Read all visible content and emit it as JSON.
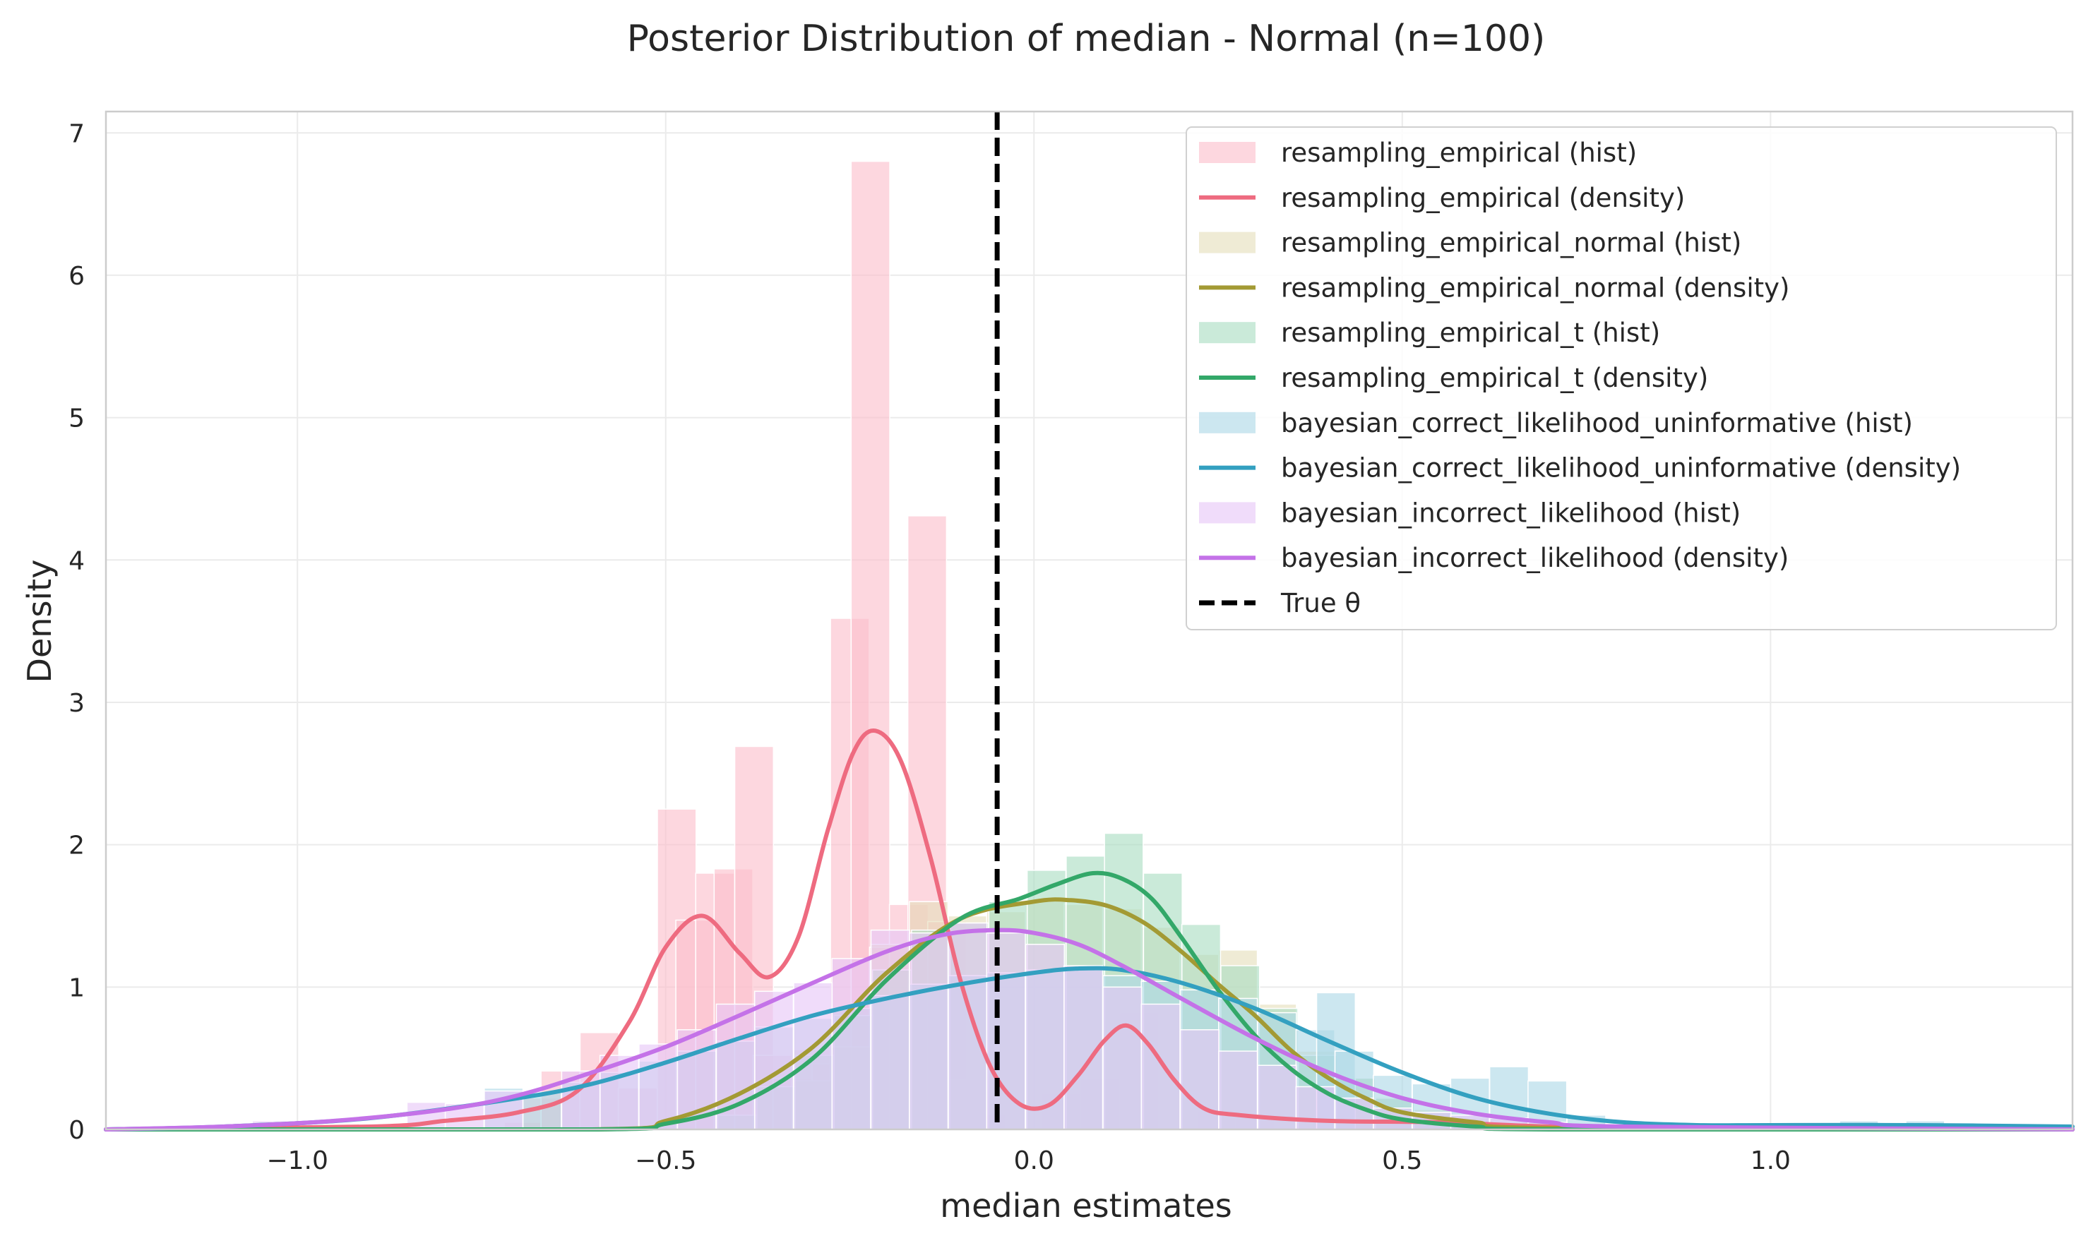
{
  "chart_data": {
    "type": "histogram+density",
    "title": "Posterior Distribution of median - Normal (n=100)",
    "xlabel": "median estimates",
    "ylabel": "Density",
    "xlim": [
      -1.26,
      1.41
    ],
    "ylim": [
      0,
      7.15
    ],
    "xticks": [
      -1.0,
      -0.5,
      0.0,
      0.5,
      1.0
    ],
    "xtick_labels": [
      "−1.0",
      "−0.5",
      "0.0",
      "0.5",
      "1.0"
    ],
    "yticks": [
      0,
      1,
      2,
      3,
      4,
      5,
      6,
      7
    ],
    "ytick_labels": [
      "0",
      "1",
      "2",
      "3",
      "4",
      "5",
      "6",
      "7"
    ],
    "grid": true,
    "legend_position": "upper-right",
    "true_theta": {
      "x": -0.05,
      "label": "True θ",
      "color": "#000000"
    },
    "series": [
      {
        "name": "resampling_empirical",
        "hist_label": "resampling_empirical (hist)",
        "density_label": "resampling_empirical (density)",
        "color": "#ee6b80",
        "hist_color": "#fbbecb",
        "bins": [
          [
            -0.693,
            0.05
          ],
          [
            -0.668,
            0.22
          ],
          [
            -0.643,
            0.41
          ],
          [
            -0.59,
            0.68
          ],
          [
            -0.538,
            0.29
          ],
          [
            -0.485,
            2.25
          ],
          [
            -0.46,
            1.47
          ],
          [
            -0.433,
            1.8
          ],
          [
            -0.408,
            1.83
          ],
          [
            -0.38,
            2.69
          ],
          [
            -0.355,
            0.52
          ],
          [
            -0.328,
            0.36
          ],
          [
            -0.303,
            0.56
          ],
          [
            -0.275,
            0.46
          ],
          [
            -0.25,
            3.59
          ],
          [
            -0.222,
            6.8
          ],
          [
            -0.197,
            1.28
          ],
          [
            -0.17,
            1.58
          ],
          [
            -0.145,
            4.31
          ],
          [
            -0.118,
            1.46
          ],
          [
            -0.092,
            0.35
          ],
          [
            -0.065,
            0.1
          ],
          [
            0.037,
            0.25
          ],
          [
            0.09,
            0.36
          ],
          [
            0.143,
            0.82
          ],
          [
            0.248,
            0.12
          ],
          [
            0.3,
            0.1
          ],
          [
            0.405,
            0.05
          ],
          [
            0.458,
            0.06
          ],
          [
            0.51,
            0.06
          ],
          [
            0.563,
            0.04
          ],
          [
            0.615,
            0.03
          ],
          [
            0.668,
            0.02
          ]
        ],
        "density": [
          [
            -1.26,
            0.0
          ],
          [
            -0.9,
            0.02
          ],
          [
            -0.8,
            0.06
          ],
          [
            -0.7,
            0.12
          ],
          [
            -0.62,
            0.27
          ],
          [
            -0.55,
            0.75
          ],
          [
            -0.5,
            1.28
          ],
          [
            -0.45,
            1.5
          ],
          [
            -0.4,
            1.24
          ],
          [
            -0.36,
            1.07
          ],
          [
            -0.32,
            1.35
          ],
          [
            -0.28,
            2.1
          ],
          [
            -0.245,
            2.65
          ],
          [
            -0.215,
            2.8
          ],
          [
            -0.18,
            2.58
          ],
          [
            -0.14,
            1.9
          ],
          [
            -0.1,
            1.05
          ],
          [
            -0.06,
            0.45
          ],
          [
            -0.02,
            0.18
          ],
          [
            0.02,
            0.17
          ],
          [
            0.06,
            0.38
          ],
          [
            0.095,
            0.62
          ],
          [
            0.125,
            0.73
          ],
          [
            0.155,
            0.6
          ],
          [
            0.19,
            0.35
          ],
          [
            0.23,
            0.15
          ],
          [
            0.28,
            0.1
          ],
          [
            0.4,
            0.06
          ],
          [
            0.55,
            0.05
          ],
          [
            0.7,
            0.02
          ],
          [
            0.85,
            0.01
          ],
          [
            1.41,
            0.0
          ]
        ]
      },
      {
        "name": "resampling_empirical_normal",
        "hist_label": "resampling_empirical_normal (hist)",
        "density_label": "resampling_empirical_normal (density)",
        "color": "#a39a34",
        "hist_color": "#e5dfbc",
        "bins": [
          [
            -0.3,
            0.34
          ],
          [
            -0.248,
            0.58
          ],
          [
            -0.195,
            1.3
          ],
          [
            -0.143,
            1.6
          ],
          [
            -0.09,
            1.5
          ],
          [
            -0.038,
            1.53
          ],
          [
            0.015,
            1.6
          ],
          [
            0.067,
            1.58
          ],
          [
            0.12,
            1.55
          ],
          [
            0.172,
            1.42
          ],
          [
            0.225,
            1.23
          ],
          [
            0.277,
            1.26
          ],
          [
            0.33,
            0.88
          ],
          [
            0.382,
            0.55
          ],
          [
            0.435,
            0.36
          ],
          [
            0.487,
            0.23
          ],
          [
            0.54,
            0.14
          ],
          [
            0.592,
            0.08
          ],
          [
            0.645,
            0.04
          ]
        ],
        "density": [
          [
            -1.26,
            0.0
          ],
          [
            -0.6,
            0.0
          ],
          [
            -0.5,
            0.06
          ],
          [
            -0.4,
            0.25
          ],
          [
            -0.3,
            0.58
          ],
          [
            -0.2,
            1.1
          ],
          [
            -0.1,
            1.48
          ],
          [
            0.0,
            1.6
          ],
          [
            0.05,
            1.61
          ],
          [
            0.1,
            1.57
          ],
          [
            0.15,
            1.45
          ],
          [
            0.2,
            1.25
          ],
          [
            0.25,
            1.02
          ],
          [
            0.3,
            0.8
          ],
          [
            0.35,
            0.55
          ],
          [
            0.4,
            0.36
          ],
          [
            0.45,
            0.22
          ],
          [
            0.5,
            0.12
          ],
          [
            0.6,
            0.05
          ],
          [
            0.7,
            0.01
          ],
          [
            1.41,
            0.0
          ]
        ]
      },
      {
        "name": "resampling_empirical_t",
        "hist_label": "resampling_empirical_t (hist)",
        "density_label": "resampling_empirical_t (density)",
        "color": "#33a869",
        "hist_color": "#a9ddc1",
        "bins": [
          [
            -0.403,
            0.1
          ],
          [
            -0.35,
            0.3
          ],
          [
            -0.298,
            0.52
          ],
          [
            -0.245,
            0.8
          ],
          [
            -0.193,
            1.12
          ],
          [
            -0.14,
            1.4
          ],
          [
            -0.088,
            1.45
          ],
          [
            -0.035,
            1.6
          ],
          [
            0.017,
            1.82
          ],
          [
            0.07,
            1.92
          ],
          [
            0.122,
            2.08
          ],
          [
            0.175,
            1.8
          ],
          [
            0.227,
            1.44
          ],
          [
            0.28,
            1.15
          ],
          [
            0.332,
            0.85
          ],
          [
            0.385,
            0.52
          ],
          [
            0.437,
            0.36
          ],
          [
            0.49,
            0.22
          ],
          [
            0.542,
            0.12
          ],
          [
            0.595,
            0.06
          ],
          [
            0.647,
            0.03
          ]
        ],
        "density": [
          [
            -1.26,
            0.0
          ],
          [
            -0.6,
            0.0
          ],
          [
            -0.5,
            0.04
          ],
          [
            -0.4,
            0.18
          ],
          [
            -0.3,
            0.5
          ],
          [
            -0.2,
            1.05
          ],
          [
            -0.1,
            1.48
          ],
          [
            -0.02,
            1.62
          ],
          [
            0.03,
            1.72
          ],
          [
            0.08,
            1.8
          ],
          [
            0.12,
            1.76
          ],
          [
            0.16,
            1.62
          ],
          [
            0.2,
            1.35
          ],
          [
            0.25,
            0.98
          ],
          [
            0.3,
            0.66
          ],
          [
            0.35,
            0.42
          ],
          [
            0.4,
            0.25
          ],
          [
            0.45,
            0.14
          ],
          [
            0.5,
            0.07
          ],
          [
            0.6,
            0.02
          ],
          [
            0.7,
            0.0
          ],
          [
            1.41,
            0.0
          ]
        ]
      },
      {
        "name": "bayesian_correct_likelihood_uninformative",
        "hist_label": "bayesian_correct_likelihood_uninformative (hist)",
        "density_label": "bayesian_correct_likelihood_uninformative (density)",
        "color": "#33a0c0",
        "hist_color": "#add8e6",
        "bins": [
          [
            -0.72,
            0.29
          ],
          [
            -0.668,
            0.26
          ],
          [
            -0.615,
            0.33
          ],
          [
            -0.563,
            0.4
          ],
          [
            -0.51,
            0.48
          ],
          [
            -0.458,
            0.55
          ],
          [
            -0.405,
            0.62
          ],
          [
            -0.353,
            0.72
          ],
          [
            -0.3,
            0.78
          ],
          [
            -0.248,
            0.85
          ],
          [
            -0.195,
            0.94
          ],
          [
            -0.143,
            1.02
          ],
          [
            -0.09,
            1.08
          ],
          [
            -0.038,
            1.1
          ],
          [
            0.015,
            1.12
          ],
          [
            0.067,
            1.13
          ],
          [
            0.12,
            1.08
          ],
          [
            0.172,
            1.04
          ],
          [
            0.225,
            0.98
          ],
          [
            0.277,
            0.92
          ],
          [
            0.33,
            0.82
          ],
          [
            0.382,
            0.7
          ],
          [
            0.41,
            0.96
          ],
          [
            0.435,
            0.55
          ],
          [
            0.487,
            0.38
          ],
          [
            0.54,
            0.32
          ],
          [
            0.592,
            0.36
          ],
          [
            0.645,
            0.44
          ],
          [
            0.697,
            0.34
          ],
          [
            0.75,
            0.1
          ],
          [
            0.855,
            0.05
          ],
          [
            0.96,
            0.04
          ],
          [
            1.12,
            0.06
          ],
          [
            1.21,
            0.06
          ]
        ],
        "density": [
          [
            -1.26,
            0.0
          ],
          [
            -1.1,
            0.02
          ],
          [
            -0.9,
            0.08
          ],
          [
            -0.7,
            0.22
          ],
          [
            -0.6,
            0.32
          ],
          [
            -0.5,
            0.47
          ],
          [
            -0.4,
            0.64
          ],
          [
            -0.3,
            0.8
          ],
          [
            -0.2,
            0.92
          ],
          [
            -0.1,
            1.02
          ],
          [
            0.0,
            1.1
          ],
          [
            0.06,
            1.13
          ],
          [
            0.12,
            1.12
          ],
          [
            0.2,
            1.03
          ],
          [
            0.3,
            0.85
          ],
          [
            0.4,
            0.62
          ],
          [
            0.5,
            0.4
          ],
          [
            0.6,
            0.22
          ],
          [
            0.7,
            0.11
          ],
          [
            0.8,
            0.05
          ],
          [
            0.9,
            0.03
          ],
          [
            1.0,
            0.03
          ],
          [
            1.2,
            0.03
          ],
          [
            1.41,
            0.02
          ]
        ]
      },
      {
        "name": "bayesian_incorrect_likelihood",
        "hist_label": "bayesian_incorrect_likelihood (hist)",
        "density_label": "bayesian_incorrect_likelihood (density)",
        "color": "#c472e8",
        "hist_color": "#e6c7f7",
        "bins": [
          [
            -1.035,
            0.06
          ],
          [
            -0.825,
            0.19
          ],
          [
            -0.773,
            0.18
          ],
          [
            -0.72,
            0.27
          ],
          [
            -0.615,
            0.41
          ],
          [
            -0.563,
            0.52
          ],
          [
            -0.51,
            0.6
          ],
          [
            -0.458,
            0.7
          ],
          [
            -0.405,
            0.88
          ],
          [
            -0.353,
            0.97
          ],
          [
            -0.3,
            1.03
          ],
          [
            -0.248,
            1.2
          ],
          [
            -0.195,
            1.4
          ],
          [
            -0.143,
            1.38
          ],
          [
            -0.09,
            1.45
          ],
          [
            -0.038,
            1.38
          ],
          [
            0.015,
            1.3
          ],
          [
            0.067,
            1.15
          ],
          [
            0.12,
            1.0
          ],
          [
            0.172,
            0.88
          ],
          [
            0.225,
            0.7
          ],
          [
            0.277,
            0.55
          ],
          [
            0.33,
            0.45
          ],
          [
            0.382,
            0.3
          ],
          [
            0.435,
            0.22
          ],
          [
            0.487,
            0.15
          ],
          [
            0.54,
            0.12
          ],
          [
            0.592,
            0.1
          ],
          [
            0.645,
            0.08
          ],
          [
            0.697,
            0.05
          ]
        ],
        "density": [
          [
            -1.26,
            0.0
          ],
          [
            -1.1,
            0.02
          ],
          [
            -0.95,
            0.06
          ],
          [
            -0.8,
            0.14
          ],
          [
            -0.7,
            0.24
          ],
          [
            -0.6,
            0.4
          ],
          [
            -0.5,
            0.58
          ],
          [
            -0.4,
            0.8
          ],
          [
            -0.3,
            1.03
          ],
          [
            -0.2,
            1.25
          ],
          [
            -0.12,
            1.37
          ],
          [
            -0.05,
            1.4
          ],
          [
            0.0,
            1.38
          ],
          [
            0.06,
            1.3
          ],
          [
            0.12,
            1.15
          ],
          [
            0.2,
            0.92
          ],
          [
            0.3,
            0.64
          ],
          [
            0.4,
            0.4
          ],
          [
            0.5,
            0.22
          ],
          [
            0.6,
            0.11
          ],
          [
            0.7,
            0.05
          ],
          [
            0.8,
            0.02
          ],
          [
            1.41,
            0.0
          ]
        ]
      }
    ]
  }
}
